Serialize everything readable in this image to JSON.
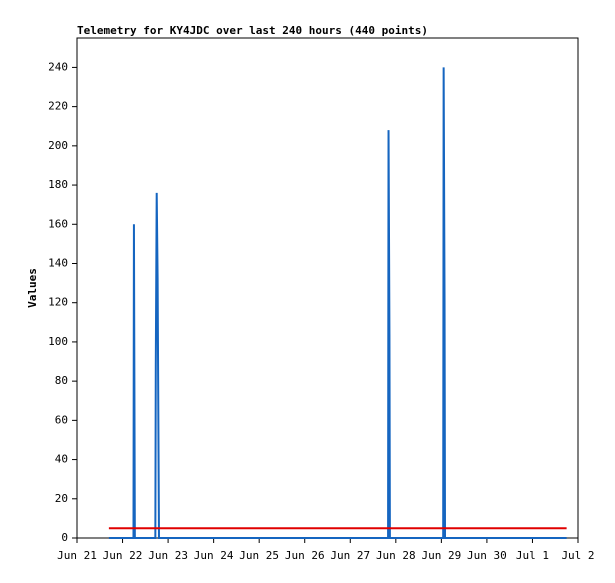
{
  "chart_data": {
    "type": "line",
    "title": "Telemetry for KY4JDC over last 240 hours (440 points)",
    "y_label": "Values",
    "series": [
      {
        "color": "#1565c0",
        "x": [
          0.7,
          1.24,
          1.25,
          1.26,
          1.27,
          1.72,
          1.73,
          1.75,
          1.77,
          1.79,
          1.8,
          6.83,
          6.84,
          6.86,
          6.87,
          8.04,
          8.05,
          8.07,
          8.08,
          10.75
        ],
        "values": [
          0,
          0,
          160,
          80,
          0,
          0,
          88,
          176,
          132,
          44,
          0,
          0,
          208,
          104,
          0,
          0,
          240,
          120,
          0,
          0
        ]
      },
      {
        "color": "#e00000",
        "x": [
          0.7,
          10.75
        ],
        "values": [
          5,
          5
        ]
      }
    ],
    "xlim": [
      0,
      11
    ],
    "xticks": [
      {
        "value": 0,
        "label": "Jun 21"
      },
      {
        "value": 1,
        "label": "Jun 22"
      },
      {
        "value": 2,
        "label": "Jun 23"
      },
      {
        "value": 3,
        "label": "Jun 24"
      },
      {
        "value": 4,
        "label": "Jun 25"
      },
      {
        "value": 5,
        "label": "Jun 26"
      },
      {
        "value": 6,
        "label": "Jun 27"
      },
      {
        "value": 7,
        "label": "Jun 28"
      },
      {
        "value": 8,
        "label": "Jun 29"
      },
      {
        "value": 9,
        "label": "Jun 30"
      },
      {
        "value": 10,
        "label": "Jul 1"
      },
      {
        "value": 11,
        "label": "Jul 2"
      }
    ],
    "ylim": [
      0,
      255
    ],
    "yticks": [
      0,
      20,
      40,
      60,
      80,
      100,
      120,
      140,
      160,
      180,
      200,
      220,
      240
    ]
  }
}
